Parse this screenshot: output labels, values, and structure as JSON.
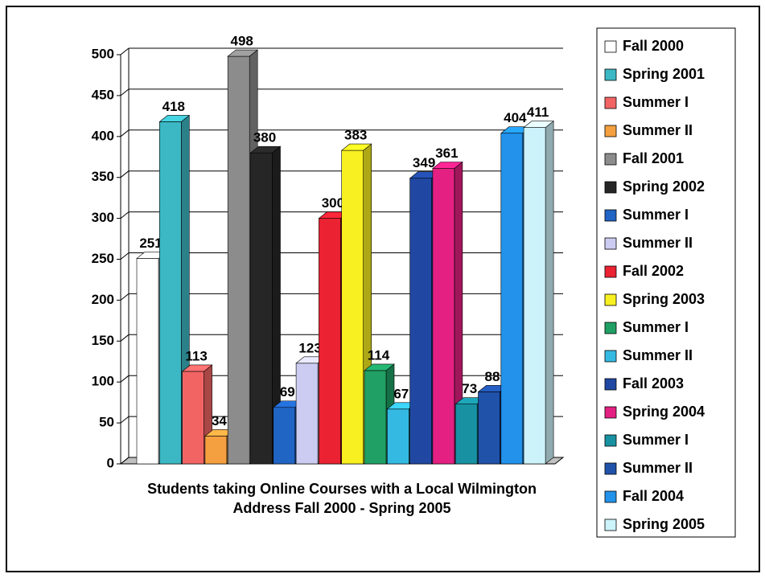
{
  "chart_data": {
    "type": "bar",
    "title": "Students taking Online Courses with a Local Wilmington Address Fall 2000 - Spring 2005",
    "series": [
      {
        "name": "Fall 2000",
        "color": "#ffffff",
        "values": [
          251
        ]
      },
      {
        "name": "Spring 2001",
        "color": "#3cb8c4",
        "values": [
          418
        ]
      },
      {
        "name": "Summer I",
        "color": "#f26464",
        "values": [
          113
        ]
      },
      {
        "name": "Summer II",
        "color": "#f4a040",
        "values": [
          34
        ]
      },
      {
        "name": "Fall 2001",
        "color": "#8c8c8c",
        "values": [
          498
        ]
      },
      {
        "name": "Spring 2002",
        "color": "#262626",
        "values": [
          380
        ]
      },
      {
        "name": "Summer I",
        "color": "#2064c4",
        "values": [
          69
        ]
      },
      {
        "name": "Summer II",
        "color": "#ccccf2",
        "values": [
          123
        ]
      },
      {
        "name": "Fall 2002",
        "color": "#ea2232",
        "values": [
          300
        ]
      },
      {
        "name": "Spring 2003",
        "color": "#f8f020",
        "values": [
          383
        ]
      },
      {
        "name": "Summer I",
        "color": "#20a064",
        "values": [
          114
        ]
      },
      {
        "name": "Summer II",
        "color": "#34bae2",
        "values": [
          67
        ]
      },
      {
        "name": "Fall 2003",
        "color": "#2048a2",
        "values": [
          349
        ]
      },
      {
        "name": "Spring 2004",
        "color": "#e42082",
        "values": [
          361
        ]
      },
      {
        "name": "Summer I",
        "color": "#1892a2",
        "values": [
          73
        ]
      },
      {
        "name": "Summer II",
        "color": "#2052aa",
        "values": [
          88
        ]
      },
      {
        "name": "Fall 2004",
        "color": "#2292ea",
        "values": [
          404
        ]
      },
      {
        "name": "Spring 2005",
        "color": "#ccf2fa",
        "values": [
          411
        ]
      }
    ],
    "ylim": [
      0,
      500
    ],
    "yticks": [
      0,
      50,
      100,
      150,
      200,
      250,
      300,
      350,
      400,
      450,
      500
    ],
    "grid": true,
    "legend": "right"
  }
}
